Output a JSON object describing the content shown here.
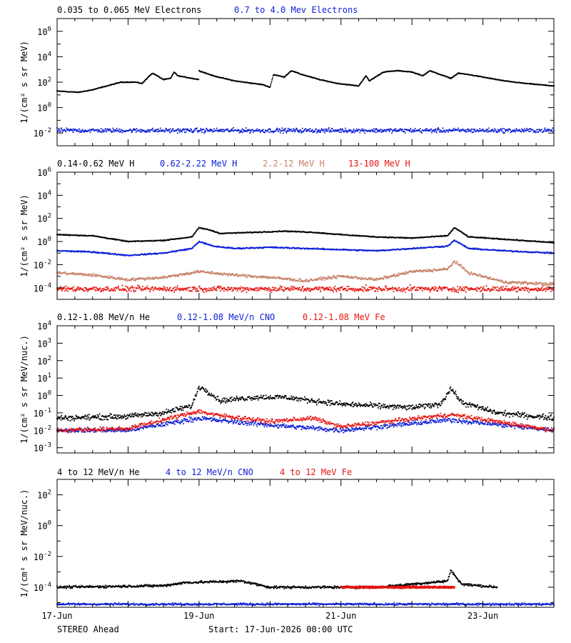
{
  "colors": {
    "black": "#000000",
    "blue": "#0b1fd6",
    "tan": "#c7826b",
    "red": "#e8140f"
  },
  "footer": {
    "spacecraft": "STEREO Ahead",
    "start": "Start: 17-Jun-2026 00:00 UTC"
  },
  "x_axis": {
    "range_days": [
      0,
      7
    ],
    "ticks": [
      {
        "day": 0,
        "label": "17-Jun"
      },
      {
        "day": 2,
        "label": "19-Jun"
      },
      {
        "day": 4,
        "label": "21-Jun"
      },
      {
        "day": 6,
        "label": "23-Jun"
      }
    ],
    "minor_step_hours": 6
  },
  "chart_data": [
    {
      "type": "scatter",
      "log_y": true,
      "ylim": [
        0.001,
        10000000
      ],
      "ylabel": "1/(cm² s sr MeV)",
      "yticks": [
        {
          "exp": -2,
          "label": "10",
          "sup": "-2"
        },
        {
          "exp": 0,
          "label": "10",
          "sup": "0"
        },
        {
          "exp": 2,
          "label": "10",
          "sup": "2"
        },
        {
          "exp": 4,
          "label": "10",
          "sup": "4"
        },
        {
          "exp": 6,
          "label": "10",
          "sup": "6"
        }
      ],
      "series": [
        {
          "name": "0.035 to 0.065 MeV Electrons",
          "color": "#000000",
          "scatter": 0.04,
          "points": [
            [
              0,
              1.3
            ],
            [
              0.3,
              1.2
            ],
            [
              0.5,
              1.4
            ],
            [
              0.7,
              1.7
            ],
            [
              0.9,
              2.0
            ],
            [
              1.1,
              2.0
            ],
            [
              1.2,
              1.9
            ],
            [
              1.3,
              2.5
            ],
            [
              1.35,
              2.7
            ],
            [
              1.5,
              2.2
            ],
            [
              1.6,
              2.3
            ],
            [
              1.65,
              2.8
            ],
            [
              1.7,
              2.5
            ],
            [
              1.8,
              2.4
            ],
            [
              2.0,
              2.2
            ],
            [
              2.0,
              2.9
            ],
            [
              2.2,
              2.5
            ],
            [
              2.5,
              2.1
            ],
            [
              2.9,
              1.8
            ],
            [
              3.0,
              1.6
            ],
            [
              3.05,
              2.6
            ],
            [
              3.2,
              2.4
            ],
            [
              3.3,
              2.9
            ],
            [
              3.45,
              2.6
            ],
            [
              3.7,
              2.2
            ],
            [
              3.95,
              1.9
            ],
            [
              4.1,
              1.8
            ],
            [
              4.25,
              1.7
            ],
            [
              4.35,
              2.5
            ],
            [
              4.4,
              2.1
            ],
            [
              4.6,
              2.8
            ],
            [
              4.8,
              2.9
            ],
            [
              5.0,
              2.8
            ],
            [
              5.15,
              2.5
            ],
            [
              5.25,
              2.9
            ],
            [
              5.4,
              2.6
            ],
            [
              5.55,
              2.3
            ],
            [
              5.65,
              2.7
            ],
            [
              5.8,
              2.6
            ],
            [
              6.0,
              2.4
            ],
            [
              6.3,
              2.1
            ],
            [
              6.6,
              1.9
            ],
            [
              7.0,
              1.7
            ]
          ]
        },
        {
          "name": "0.7 to 4.0 Mev Electrons",
          "color": "#0b1fd6",
          "scatter": 0.25,
          "points": [
            [
              0,
              -1.8
            ],
            [
              1,
              -1.8
            ],
            [
              2,
              -1.8
            ],
            [
              3,
              -1.8
            ],
            [
              4,
              -1.8
            ],
            [
              5,
              -1.8
            ],
            [
              6,
              -1.8
            ],
            [
              7,
              -1.8
            ]
          ]
        }
      ]
    },
    {
      "type": "scatter",
      "log_y": true,
      "ylim": [
        1e-05,
        1000000
      ],
      "ylabel": "1/(cm² s sr MeV)",
      "yticks": [
        {
          "exp": -4,
          "label": "10",
          "sup": "-4"
        },
        {
          "exp": -2,
          "label": "10",
          "sup": "-2"
        },
        {
          "exp": 0,
          "label": "10",
          "sup": "0"
        },
        {
          "exp": 2,
          "label": "10",
          "sup": "2"
        },
        {
          "exp": 4,
          "label": "10",
          "sup": "4"
        },
        {
          "exp": 6,
          "label": "10",
          "sup": "6"
        }
      ],
      "series": [
        {
          "name": "0.14-0.62 MeV H",
          "color": "#000000",
          "scatter": 0.06,
          "points": [
            [
              0,
              0.6
            ],
            [
              0.5,
              0.5
            ],
            [
              1.0,
              0.0
            ],
            [
              1.5,
              0.1
            ],
            [
              1.9,
              0.4
            ],
            [
              2.0,
              1.2
            ],
            [
              2.15,
              1.0
            ],
            [
              2.3,
              0.7
            ],
            [
              2.8,
              0.8
            ],
            [
              3.2,
              0.9
            ],
            [
              3.6,
              0.8
            ],
            [
              4.0,
              0.6
            ],
            [
              4.5,
              0.4
            ],
            [
              5.0,
              0.3
            ],
            [
              5.5,
              0.5
            ],
            [
              5.6,
              1.2
            ],
            [
              5.8,
              0.4
            ],
            [
              6.3,
              0.2
            ],
            [
              7.0,
              -0.1
            ]
          ]
        },
        {
          "name": "0.62-2.22 MeV H",
          "color": "#0b1fd6",
          "scatter": 0.08,
          "points": [
            [
              0,
              -0.8
            ],
            [
              0.5,
              -0.9
            ],
            [
              1.0,
              -1.2
            ],
            [
              1.5,
              -1.0
            ],
            [
              1.9,
              -0.6
            ],
            [
              2.0,
              0.0
            ],
            [
              2.2,
              -0.4
            ],
            [
              2.5,
              -0.6
            ],
            [
              3.0,
              -0.5
            ],
            [
              3.5,
              -0.6
            ],
            [
              4.0,
              -0.7
            ],
            [
              4.5,
              -0.8
            ],
            [
              5.0,
              -0.6
            ],
            [
              5.5,
              -0.4
            ],
            [
              5.6,
              0.1
            ],
            [
              5.8,
              -0.6
            ],
            [
              6.3,
              -0.8
            ],
            [
              7.0,
              -1.0
            ]
          ]
        },
        {
          "name": "2.2-12 MeV H",
          "color": "#c7826b",
          "scatter": 0.18,
          "points": [
            [
              0,
              -2.7
            ],
            [
              0.5,
              -2.9
            ],
            [
              1.0,
              -3.3
            ],
            [
              1.5,
              -3.1
            ],
            [
              2.0,
              -2.6
            ],
            [
              2.5,
              -2.9
            ],
            [
              3.0,
              -3.1
            ],
            [
              3.5,
              -3.4
            ],
            [
              4.0,
              -3.0
            ],
            [
              4.5,
              -3.3
            ],
            [
              5.0,
              -2.6
            ],
            [
              5.5,
              -2.4
            ],
            [
              5.6,
              -1.7
            ],
            [
              5.8,
              -2.7
            ],
            [
              6.3,
              -3.5
            ],
            [
              7.0,
              -3.7
            ]
          ]
        },
        {
          "name": "13-100 MeV H",
          "color": "#e8140f",
          "scatter": 0.35,
          "points": [
            [
              0,
              -4.1
            ],
            [
              7,
              -4.1
            ]
          ]
        }
      ]
    },
    {
      "type": "scatter",
      "log_y": true,
      "ylim": [
        0.0005,
        10000
      ],
      "ylabel": "1/(cm² s sr MeV/nuc.)",
      "yticks": [
        {
          "exp": -3,
          "label": "10",
          "sup": "-3"
        },
        {
          "exp": -2,
          "label": "10",
          "sup": "-2"
        },
        {
          "exp": -1,
          "label": "10",
          "sup": "-1"
        },
        {
          "exp": 0,
          "label": "10",
          "sup": "0"
        },
        {
          "exp": 1,
          "label": "10",
          "sup": "1"
        },
        {
          "exp": 2,
          "label": "10",
          "sup": "2"
        },
        {
          "exp": 3,
          "label": "10",
          "sup": "3"
        },
        {
          "exp": 4,
          "label": "10",
          "sup": "4"
        }
      ],
      "series": [
        {
          "name": "0.12-1.08 MeV/n He",
          "color": "#000000",
          "scatter": 0.22,
          "points": [
            [
              0,
              -1.3
            ],
            [
              1.0,
              -1.2
            ],
            [
              1.5,
              -1.0
            ],
            [
              1.9,
              -0.6
            ],
            [
              2.0,
              0.5
            ],
            [
              2.1,
              0.3
            ],
            [
              2.3,
              -0.3
            ],
            [
              2.8,
              -0.1
            ],
            [
              3.2,
              -0.1
            ],
            [
              3.6,
              -0.3
            ],
            [
              4.0,
              -0.5
            ],
            [
              4.5,
              -0.6
            ],
            [
              5.0,
              -0.7
            ],
            [
              5.4,
              -0.5
            ],
            [
              5.55,
              0.4
            ],
            [
              5.7,
              -0.4
            ],
            [
              6.2,
              -1.0
            ],
            [
              7.0,
              -1.3
            ]
          ]
        },
        {
          "name": "0.12-1.08 MeV/n CNO",
          "color": "#0b1fd6",
          "scatter": 0.2,
          "points": [
            [
              0,
              -2.0
            ],
            [
              1.0,
              -2.0
            ],
            [
              2.0,
              -1.3
            ],
            [
              2.2,
              -1.4
            ],
            [
              3.0,
              -1.7
            ],
            [
              4.0,
              -2.0
            ],
            [
              5.55,
              -1.4
            ],
            [
              7.0,
              -2.0
            ]
          ]
        },
        {
          "name": "0.12-1.08 MeV Fe",
          "color": "#e8140f",
          "scatter": 0.18,
          "points": [
            [
              0,
              -2.0
            ],
            [
              1.0,
              -1.9
            ],
            [
              2.0,
              -0.9
            ],
            [
              2.2,
              -1.1
            ],
            [
              3.0,
              -1.5
            ],
            [
              3.6,
              -1.3
            ],
            [
              4.0,
              -1.8
            ],
            [
              5.55,
              -1.1
            ],
            [
              7.0,
              -2.0
            ]
          ]
        }
      ]
    },
    {
      "type": "scatter",
      "log_y": true,
      "ylim": [
        5e-06,
        1000
      ],
      "ylabel": "1/(cm² s sr MeV/nuc.)",
      "yticks": [
        {
          "exp": -4,
          "label": "10",
          "sup": "-4"
        },
        {
          "exp": -2,
          "label": "10",
          "sup": "-2"
        },
        {
          "exp": 0,
          "label": "10",
          "sup": "0"
        },
        {
          "exp": 2,
          "label": "10",
          "sup": "2"
        }
      ],
      "series": [
        {
          "name": "4 to 12 MeV/n He",
          "color": "#000000",
          "scatter": 0.12,
          "points": [
            [
              0,
              -4.0
            ],
            [
              1.5,
              -3.9
            ],
            [
              1.8,
              -3.7
            ],
            [
              2.6,
              -3.6
            ],
            [
              3.0,
              -4.0
            ],
            [
              4.5,
              -4.0
            ],
            [
              5.0,
              -3.8
            ],
            [
              5.5,
              -3.6
            ],
            [
              5.55,
              -2.9
            ],
            [
              5.7,
              -3.8
            ],
            [
              6.2,
              -4.0
            ]
          ]
        },
        {
          "name": "4 to 12 MeV/n CNO",
          "color": "#0b1fd6",
          "scatter": 0.1,
          "points": [
            [
              0,
              -5.1
            ],
            [
              7.0,
              -5.1
            ]
          ]
        },
        {
          "name": "4 to 12 MeV Fe",
          "color": "#e8140f",
          "scatter": 0.1,
          "points": [
            [
              4.0,
              -4.0
            ],
            [
              5.6,
              -4.0
            ]
          ]
        }
      ]
    }
  ]
}
